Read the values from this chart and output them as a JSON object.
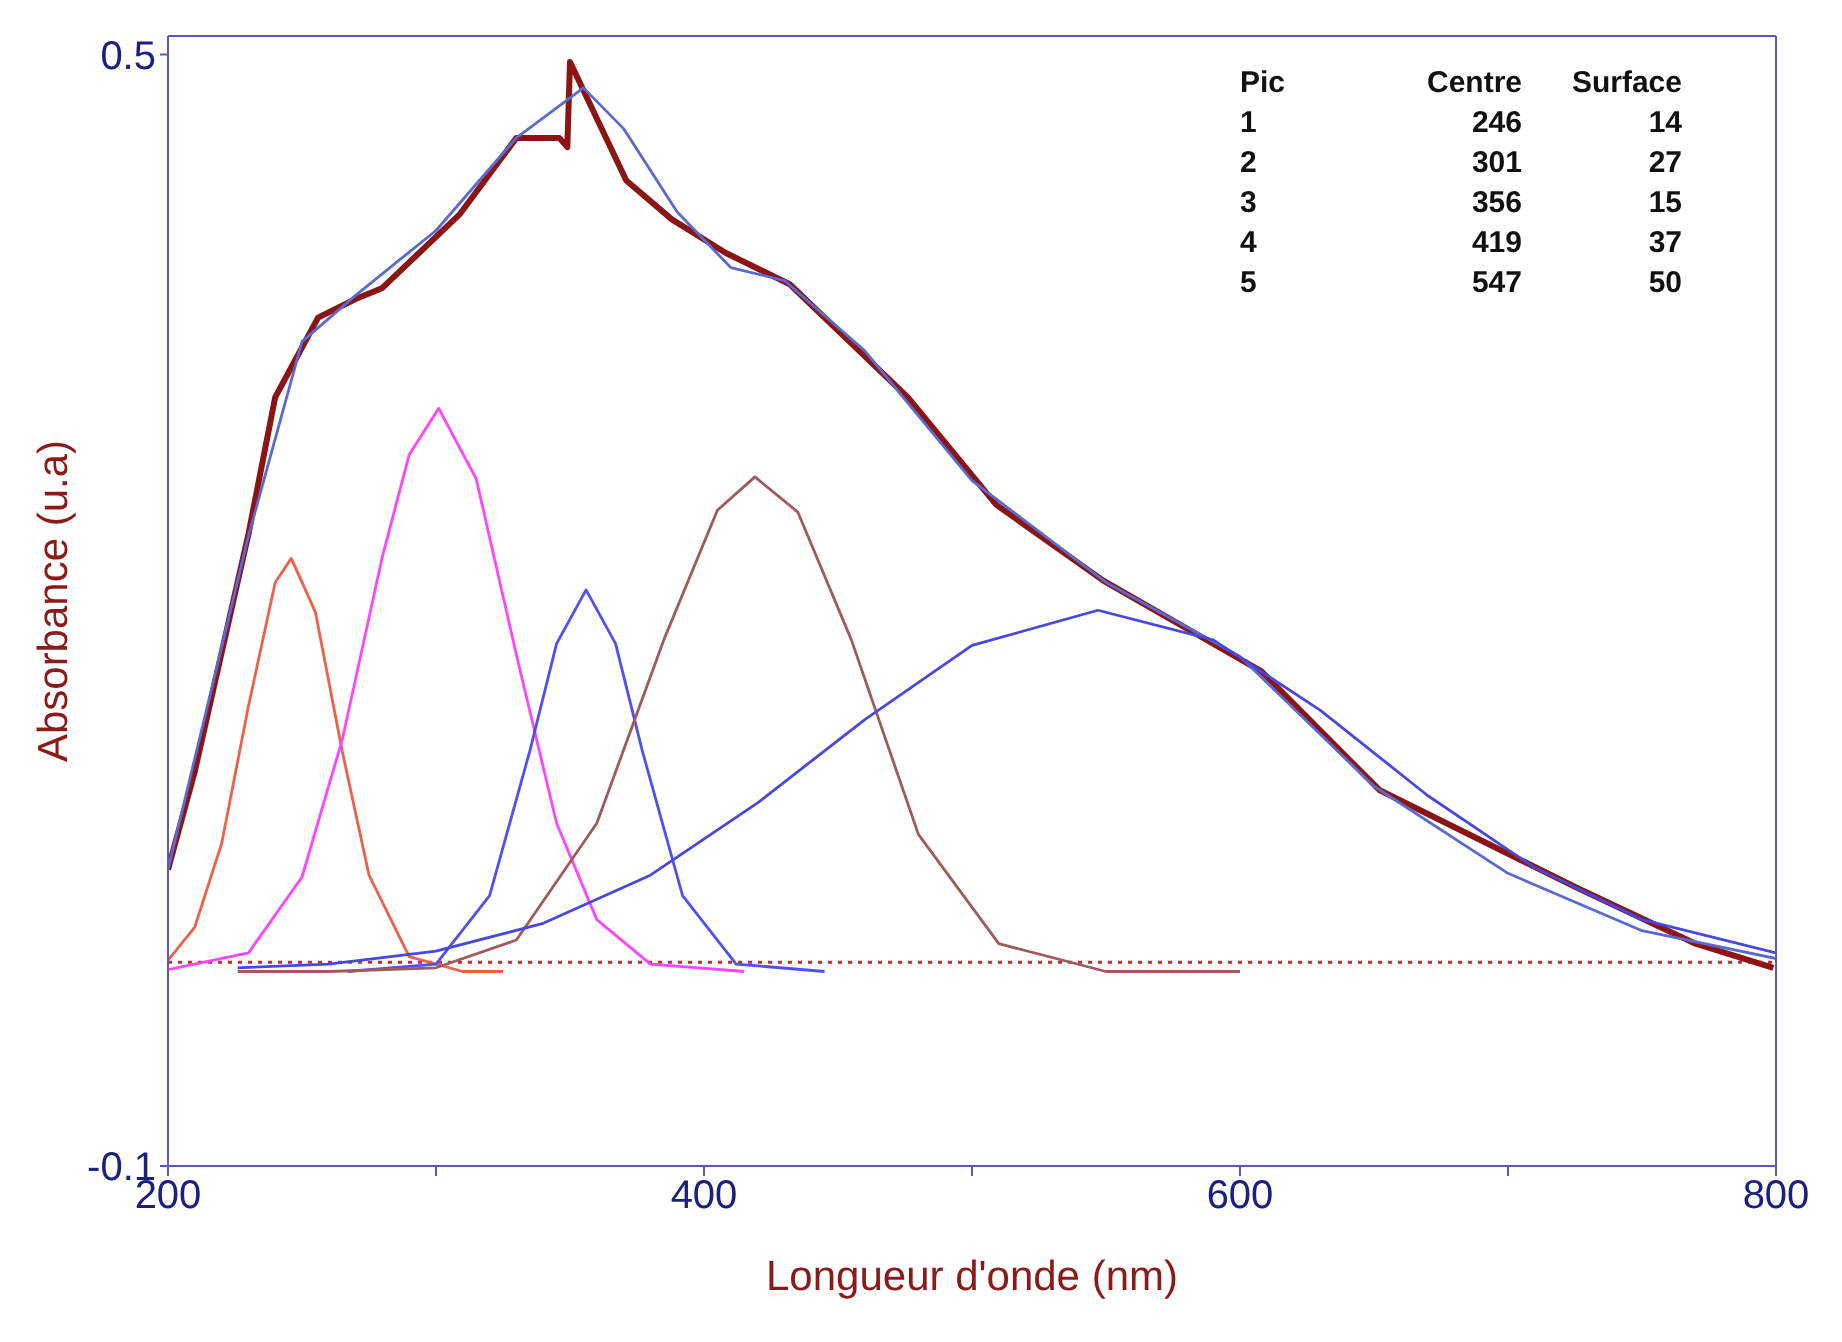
{
  "chart_data": {
    "type": "line",
    "xlabel": "Longueur d'onde (nm)",
    "ylabel": "Absorbance (u.a)",
    "xlim": [
      200,
      800
    ],
    "ylim": [
      -0.1,
      0.51
    ],
    "xticks": [
      200,
      {
        "value": 300,
        "label": null
      },
      400,
      {
        "value": 500,
        "label": null
      },
      600,
      {
        "value": 700,
        "label": null
      },
      800
    ],
    "yticks": [
      -0.1,
      0.5
    ],
    "series": [
      {
        "color": "#8b1414",
        "x": [
          200,
          210,
          220,
          230,
          240,
          256,
          270,
          280,
          309,
          330,
          346,
          349,
          350,
          371,
          388,
          408,
          432,
          476,
          509,
          549,
          608,
          652,
          726,
          770,
          799
        ],
        "values": [
          0.06,
          0.113,
          0.177,
          0.241,
          0.315,
          0.358,
          0.368,
          0.374,
          0.414,
          0.455,
          0.455,
          0.45,
          0.496,
          0.432,
          0.411,
          0.393,
          0.376,
          0.315,
          0.257,
          0.216,
          0.167,
          0.103,
          0.05,
          0.02,
          0.007
        ]
      },
      {
        "color": "#5a6ad0",
        "x": [
          200,
          230,
          250,
          270,
          300,
          330,
          355,
          370,
          390,
          410,
          430,
          460,
          500,
          550,
          600,
          650,
          700,
          750,
          800
        ],
        "values": [
          0.06,
          0.24,
          0.345,
          0.37,
          0.405,
          0.455,
          0.482,
          0.46,
          0.415,
          0.385,
          0.378,
          0.34,
          0.27,
          0.215,
          0.175,
          0.105,
          0.058,
          0.027,
          0.012
        ]
      },
      {
        "color": "#f06048",
        "x": [
          200,
          210,
          220,
          230,
          240,
          246,
          255,
          265,
          275,
          290,
          310,
          325
        ],
        "values": [
          0.011,
          0.029,
          0.074,
          0.148,
          0.215,
          0.228,
          0.199,
          0.124,
          0.057,
          0.013,
          0.005,
          0.005
        ]
      },
      {
        "color": "#ff44ff",
        "x": [
          200,
          230,
          250,
          265,
          280,
          290,
          301,
          315,
          330,
          345,
          360,
          380,
          415
        ],
        "values": [
          0.006,
          0.015,
          0.056,
          0.13,
          0.229,
          0.284,
          0.309,
          0.271,
          0.176,
          0.085,
          0.033,
          0.009,
          0.005
        ]
      },
      {
        "color": "#5050f0",
        "x": [
          267,
          300,
          320,
          335,
          345,
          356,
          367,
          377,
          392,
          412,
          445
        ],
        "values": [
          0.005,
          0.009,
          0.046,
          0.124,
          0.182,
          0.211,
          0.182,
          0.124,
          0.046,
          0.009,
          0.005
        ]
      },
      {
        "color": "#a05a5a",
        "x": [
          226,
          260,
          300,
          330,
          360,
          385,
          405,
          419,
          435,
          455,
          480,
          510,
          550,
          600
        ],
        "values": [
          0.005,
          0.005,
          0.007,
          0.022,
          0.085,
          0.184,
          0.254,
          0.272,
          0.253,
          0.184,
          0.079,
          0.02,
          0.005,
          0.005
        ]
      },
      {
        "color": "#4848e0",
        "x": [
          226,
          260,
          300,
          340,
          380,
          420,
          460,
          500,
          547,
          590,
          630,
          670,
          710,
          750,
          800
        ],
        "values": [
          0.007,
          0.009,
          0.016,
          0.031,
          0.057,
          0.096,
          0.141,
          0.181,
          0.2,
          0.184,
          0.146,
          0.1,
          0.061,
          0.033,
          0.015
        ]
      }
    ],
    "ref_lines": [
      {
        "axis": "y",
        "value": 0.01,
        "color": "#c03030",
        "line_style": "dotted"
      }
    ],
    "annotations": [
      "Pic\tCentre\tSurface",
      "1\t246\t14",
      "2\t301\t27",
      "3\t356\t15",
      "4\t419\t37",
      "5\t547\t50"
    ]
  }
}
